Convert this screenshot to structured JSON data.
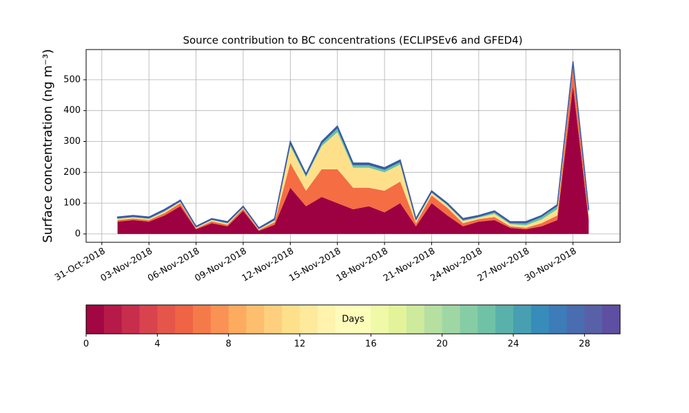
{
  "chart_data": {
    "type": "stacked_area",
    "title": "Source contribution to BC concentrations (ECLIPSEv6 and GFED4)",
    "y_label": "Surface concentration (ng m⁻³)",
    "x": [
      "2018-11-01",
      "2018-11-02",
      "2018-11-03",
      "2018-11-04",
      "2018-11-05",
      "2018-11-06",
      "2018-11-07",
      "2018-11-08",
      "2018-11-09",
      "2018-11-10",
      "2018-11-11",
      "2018-11-12",
      "2018-11-13",
      "2018-11-14",
      "2018-11-15",
      "2018-11-16",
      "2018-11-17",
      "2018-11-18",
      "2018-11-19",
      "2018-11-20",
      "2018-11-21",
      "2018-11-22",
      "2018-11-23",
      "2018-11-24",
      "2018-11-25",
      "2018-11-26",
      "2018-11-27",
      "2018-11-28",
      "2018-11-29",
      "2018-11-30",
      "2018-12-01"
    ],
    "series": [
      {
        "color": "#9e0142",
        "values": [
          40,
          45,
          40,
          60,
          90,
          15,
          35,
          25,
          75,
          10,
          30,
          150,
          90,
          120,
          100,
          80,
          90,
          70,
          100,
          25,
          100,
          60,
          25,
          40,
          45,
          20,
          15,
          25,
          45,
          480,
          45
        ]
      },
      {
        "color": "#f46d43",
        "values": [
          5,
          5,
          5,
          8,
          10,
          3,
          6,
          5,
          7,
          3,
          8,
          80,
          50,
          90,
          110,
          70,
          60,
          70,
          70,
          10,
          25,
          25,
          10,
          8,
          10,
          5,
          5,
          10,
          15,
          60,
          10
        ]
      },
      {
        "color": "#fee08b",
        "values": [
          4,
          4,
          4,
          5,
          4,
          3,
          4,
          4,
          3,
          3,
          5,
          55,
          45,
          75,
          120,
          65,
          65,
          60,
          55,
          7,
          8,
          8,
          7,
          5,
          10,
          7,
          8,
          12,
          20,
          10,
          12
        ]
      },
      {
        "color": "#66c2a5",
        "values": [
          3,
          3,
          3,
          4,
          3,
          2,
          3,
          3,
          3,
          2,
          4,
          10,
          7,
          10,
          15,
          10,
          10,
          10,
          10,
          5,
          4,
          4,
          5,
          4,
          7,
          5,
          8,
          10,
          12,
          5,
          10
        ]
      },
      {
        "color": "#3b5ba5",
        "values": [
          3,
          3,
          3,
          3,
          3,
          2,
          2,
          3,
          2,
          2,
          3,
          5,
          3,
          5,
          5,
          5,
          5,
          5,
          5,
          3,
          3,
          3,
          3,
          3,
          3,
          3,
          4,
          3,
          3,
          5,
          3
        ]
      }
    ],
    "xlim": [
      "2018-10-30",
      "2018-12-03"
    ],
    "xticks": [
      {
        "value": "2018-10-31",
        "label": "31-Oct-2018"
      },
      {
        "value": "2018-11-03",
        "label": "03-Nov-2018"
      },
      {
        "value": "2018-11-06",
        "label": "06-Nov-2018"
      },
      {
        "value": "2018-11-09",
        "label": "09-Nov-2018"
      },
      {
        "value": "2018-11-12",
        "label": "12-Nov-2018"
      },
      {
        "value": "2018-11-15",
        "label": "15-Nov-2018"
      },
      {
        "value": "2018-11-18",
        "label": "18-Nov-2018"
      },
      {
        "value": "2018-11-21",
        "label": "21-Nov-2018"
      },
      {
        "value": "2018-11-24",
        "label": "24-Nov-2018"
      },
      {
        "value": "2018-11-27",
        "label": "27-Nov-2018"
      },
      {
        "value": "2018-11-30",
        "label": "30-Nov-2018"
      }
    ],
    "ylim": [
      -27,
      598
    ],
    "yticks": [
      0,
      100,
      200,
      300,
      400,
      500
    ],
    "grid": true,
    "colorbar": {
      "label": "Days",
      "lim": [
        0,
        30
      ],
      "ticks": [
        0,
        4,
        8,
        12,
        16,
        20,
        24,
        28
      ],
      "colors": [
        "#a20643",
        "#b61a48",
        "#c92d4c",
        "#d8434e",
        "#e4564a",
        "#ee6445",
        "#f57a49",
        "#f99254",
        "#fcab5f",
        "#fdbe6e",
        "#fecf7e",
        "#fee08b",
        "#fee99c",
        "#fff3ad",
        "#fffbbb",
        "#fbfdb9",
        "#f0f9a7",
        "#e2f399",
        "#cdea9d",
        "#b6e0a2",
        "#9fd7a4",
        "#86cca5",
        "#6fc2a5",
        "#59b1aa",
        "#489fb2",
        "#378cba",
        "#3d7cb8",
        "#4a6cb0",
        "#5860a8",
        "#5e4fa2"
      ]
    }
  }
}
